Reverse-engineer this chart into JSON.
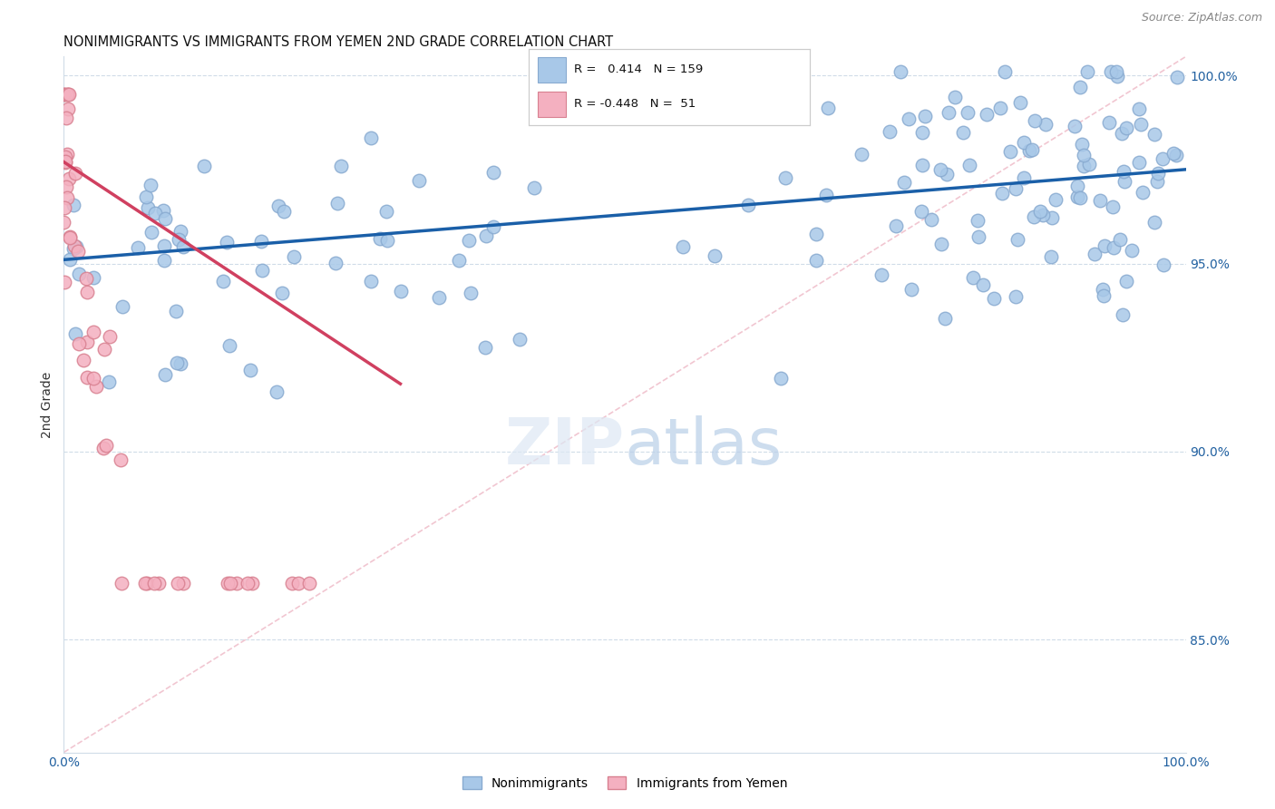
{
  "title": "NONIMMIGRANTS VS IMMIGRANTS FROM YEMEN 2ND GRADE CORRELATION CHART",
  "source": "Source: ZipAtlas.com",
  "ylabel": "2nd Grade",
  "xlim": [
    0.0,
    1.0
  ],
  "ylim": [
    0.82,
    1.005
  ],
  "yticks": [
    0.85,
    0.9,
    0.95,
    1.0
  ],
  "ytick_labels": [
    "85.0%",
    "90.0%",
    "95.0%",
    "100.0%"
  ],
  "blue_R": 0.414,
  "blue_N": 159,
  "pink_R": -0.448,
  "pink_N": 51,
  "blue_color": "#a8c8e8",
  "blue_edge_color": "#88aad0",
  "blue_line_color": "#1a5fa8",
  "pink_color": "#f4b0c0",
  "pink_edge_color": "#d88090",
  "pink_line_color": "#d04060",
  "diagonal_color": "#f0c0cc",
  "grid_color": "#d0dce8",
  "legend_label_blue": "Nonimmigrants",
  "legend_label_pink": "Immigrants from Yemen",
  "blue_line_x0": 0.0,
  "blue_line_x1": 1.0,
  "blue_line_y0": 0.951,
  "blue_line_y1": 0.975,
  "pink_line_x0": 0.0,
  "pink_line_x1": 0.3,
  "pink_line_y0": 0.977,
  "pink_line_y1": 0.918
}
